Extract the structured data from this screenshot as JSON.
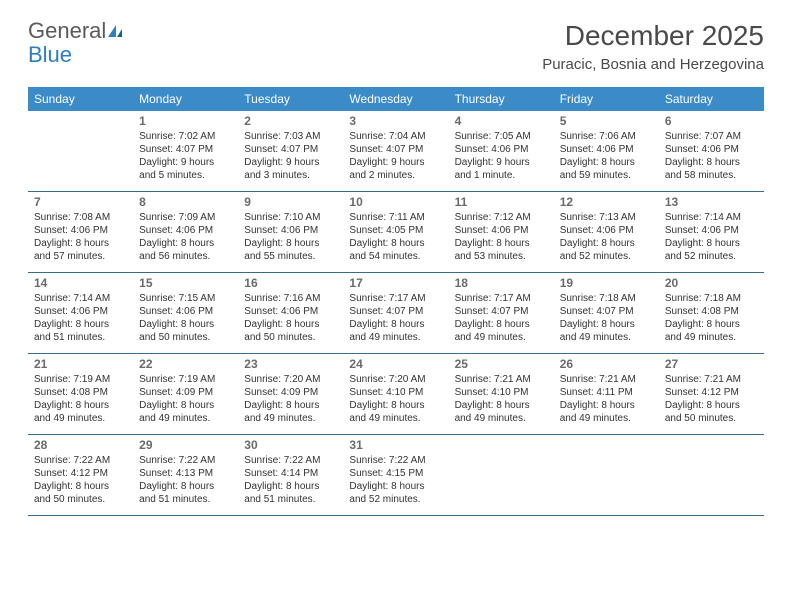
{
  "brand": {
    "word1": "General",
    "word2": "Blue"
  },
  "title": "December 2025",
  "location": "Puracic, Bosnia and Herzegovina",
  "header_bg": "#3b8bc9",
  "header_text": "#ffffff",
  "border_color": "#3b6a8f",
  "day_headers": [
    "Sunday",
    "Monday",
    "Tuesday",
    "Wednesday",
    "Thursday",
    "Friday",
    "Saturday"
  ],
  "weeks": [
    [
      {
        "num": "",
        "sunrise": "",
        "sunset": "",
        "daylight": ""
      },
      {
        "num": "1",
        "sunrise": "Sunrise: 7:02 AM",
        "sunset": "Sunset: 4:07 PM",
        "daylight": "Daylight: 9 hours and 5 minutes."
      },
      {
        "num": "2",
        "sunrise": "Sunrise: 7:03 AM",
        "sunset": "Sunset: 4:07 PM",
        "daylight": "Daylight: 9 hours and 3 minutes."
      },
      {
        "num": "3",
        "sunrise": "Sunrise: 7:04 AM",
        "sunset": "Sunset: 4:07 PM",
        "daylight": "Daylight: 9 hours and 2 minutes."
      },
      {
        "num": "4",
        "sunrise": "Sunrise: 7:05 AM",
        "sunset": "Sunset: 4:06 PM",
        "daylight": "Daylight: 9 hours and 1 minute."
      },
      {
        "num": "5",
        "sunrise": "Sunrise: 7:06 AM",
        "sunset": "Sunset: 4:06 PM",
        "daylight": "Daylight: 8 hours and 59 minutes."
      },
      {
        "num": "6",
        "sunrise": "Sunrise: 7:07 AM",
        "sunset": "Sunset: 4:06 PM",
        "daylight": "Daylight: 8 hours and 58 minutes."
      }
    ],
    [
      {
        "num": "7",
        "sunrise": "Sunrise: 7:08 AM",
        "sunset": "Sunset: 4:06 PM",
        "daylight": "Daylight: 8 hours and 57 minutes."
      },
      {
        "num": "8",
        "sunrise": "Sunrise: 7:09 AM",
        "sunset": "Sunset: 4:06 PM",
        "daylight": "Daylight: 8 hours and 56 minutes."
      },
      {
        "num": "9",
        "sunrise": "Sunrise: 7:10 AM",
        "sunset": "Sunset: 4:06 PM",
        "daylight": "Daylight: 8 hours and 55 minutes."
      },
      {
        "num": "10",
        "sunrise": "Sunrise: 7:11 AM",
        "sunset": "Sunset: 4:05 PM",
        "daylight": "Daylight: 8 hours and 54 minutes."
      },
      {
        "num": "11",
        "sunrise": "Sunrise: 7:12 AM",
        "sunset": "Sunset: 4:06 PM",
        "daylight": "Daylight: 8 hours and 53 minutes."
      },
      {
        "num": "12",
        "sunrise": "Sunrise: 7:13 AM",
        "sunset": "Sunset: 4:06 PM",
        "daylight": "Daylight: 8 hours and 52 minutes."
      },
      {
        "num": "13",
        "sunrise": "Sunrise: 7:14 AM",
        "sunset": "Sunset: 4:06 PM",
        "daylight": "Daylight: 8 hours and 52 minutes."
      }
    ],
    [
      {
        "num": "14",
        "sunrise": "Sunrise: 7:14 AM",
        "sunset": "Sunset: 4:06 PM",
        "daylight": "Daylight: 8 hours and 51 minutes."
      },
      {
        "num": "15",
        "sunrise": "Sunrise: 7:15 AM",
        "sunset": "Sunset: 4:06 PM",
        "daylight": "Daylight: 8 hours and 50 minutes."
      },
      {
        "num": "16",
        "sunrise": "Sunrise: 7:16 AM",
        "sunset": "Sunset: 4:06 PM",
        "daylight": "Daylight: 8 hours and 50 minutes."
      },
      {
        "num": "17",
        "sunrise": "Sunrise: 7:17 AM",
        "sunset": "Sunset: 4:07 PM",
        "daylight": "Daylight: 8 hours and 49 minutes."
      },
      {
        "num": "18",
        "sunrise": "Sunrise: 7:17 AM",
        "sunset": "Sunset: 4:07 PM",
        "daylight": "Daylight: 8 hours and 49 minutes."
      },
      {
        "num": "19",
        "sunrise": "Sunrise: 7:18 AM",
        "sunset": "Sunset: 4:07 PM",
        "daylight": "Daylight: 8 hours and 49 minutes."
      },
      {
        "num": "20",
        "sunrise": "Sunrise: 7:18 AM",
        "sunset": "Sunset: 4:08 PM",
        "daylight": "Daylight: 8 hours and 49 minutes."
      }
    ],
    [
      {
        "num": "21",
        "sunrise": "Sunrise: 7:19 AM",
        "sunset": "Sunset: 4:08 PM",
        "daylight": "Daylight: 8 hours and 49 minutes."
      },
      {
        "num": "22",
        "sunrise": "Sunrise: 7:19 AM",
        "sunset": "Sunset: 4:09 PM",
        "daylight": "Daylight: 8 hours and 49 minutes."
      },
      {
        "num": "23",
        "sunrise": "Sunrise: 7:20 AM",
        "sunset": "Sunset: 4:09 PM",
        "daylight": "Daylight: 8 hours and 49 minutes."
      },
      {
        "num": "24",
        "sunrise": "Sunrise: 7:20 AM",
        "sunset": "Sunset: 4:10 PM",
        "daylight": "Daylight: 8 hours and 49 minutes."
      },
      {
        "num": "25",
        "sunrise": "Sunrise: 7:21 AM",
        "sunset": "Sunset: 4:10 PM",
        "daylight": "Daylight: 8 hours and 49 minutes."
      },
      {
        "num": "26",
        "sunrise": "Sunrise: 7:21 AM",
        "sunset": "Sunset: 4:11 PM",
        "daylight": "Daylight: 8 hours and 49 minutes."
      },
      {
        "num": "27",
        "sunrise": "Sunrise: 7:21 AM",
        "sunset": "Sunset: 4:12 PM",
        "daylight": "Daylight: 8 hours and 50 minutes."
      }
    ],
    [
      {
        "num": "28",
        "sunrise": "Sunrise: 7:22 AM",
        "sunset": "Sunset: 4:12 PM",
        "daylight": "Daylight: 8 hours and 50 minutes."
      },
      {
        "num": "29",
        "sunrise": "Sunrise: 7:22 AM",
        "sunset": "Sunset: 4:13 PM",
        "daylight": "Daylight: 8 hours and 51 minutes."
      },
      {
        "num": "30",
        "sunrise": "Sunrise: 7:22 AM",
        "sunset": "Sunset: 4:14 PM",
        "daylight": "Daylight: 8 hours and 51 minutes."
      },
      {
        "num": "31",
        "sunrise": "Sunrise: 7:22 AM",
        "sunset": "Sunset: 4:15 PM",
        "daylight": "Daylight: 8 hours and 52 minutes."
      },
      {
        "num": "",
        "sunrise": "",
        "sunset": "",
        "daylight": ""
      },
      {
        "num": "",
        "sunrise": "",
        "sunset": "",
        "daylight": ""
      },
      {
        "num": "",
        "sunrise": "",
        "sunset": "",
        "daylight": ""
      }
    ]
  ]
}
